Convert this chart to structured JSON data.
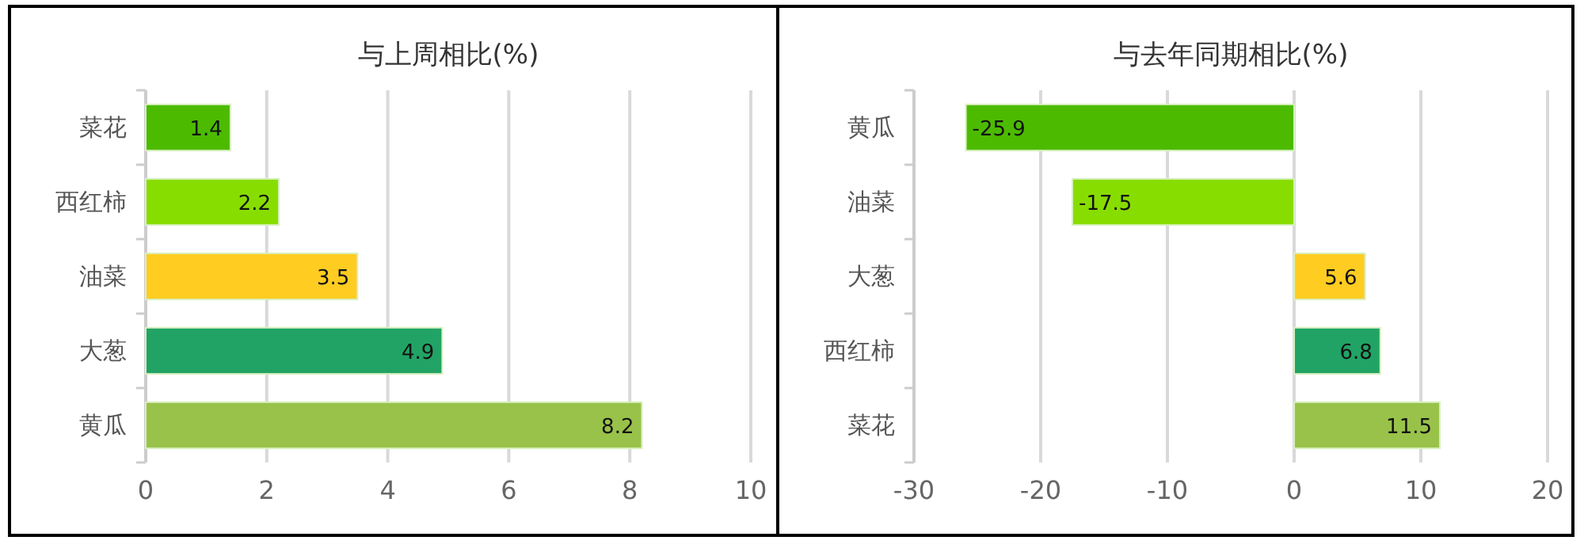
{
  "chart_data": [
    {
      "type": "bar",
      "orientation": "horizontal",
      "title": "与上周相比(%)",
      "categories": [
        "菜花",
        "西红柿",
        "油菜",
        "大葱",
        "黄瓜"
      ],
      "values": [
        1.4,
        2.2,
        3.5,
        4.9,
        8.2
      ],
      "colors": [
        "#4cbb00",
        "#88dd00",
        "#ffcc22",
        "#22a366",
        "#99c24a"
      ],
      "xlim": [
        0,
        10
      ],
      "xticks": [
        0,
        2,
        4,
        6,
        8,
        10
      ],
      "grid": "x",
      "data_labels": true
    },
    {
      "type": "bar",
      "orientation": "horizontal",
      "title": "与去年同期相比(%)",
      "categories": [
        "黄瓜",
        "油菜",
        "大葱",
        "西红柿",
        "菜花"
      ],
      "values": [
        -25.9,
        -17.5,
        5.6,
        6.8,
        11.5
      ],
      "colors": [
        "#4cbb00",
        "#88dd00",
        "#ffcc22",
        "#22a366",
        "#99c24a"
      ],
      "xlim": [
        -30,
        20
      ],
      "xticks": [
        -30,
        -20,
        -10,
        0,
        10,
        20
      ],
      "grid": "x",
      "data_labels": true
    }
  ]
}
